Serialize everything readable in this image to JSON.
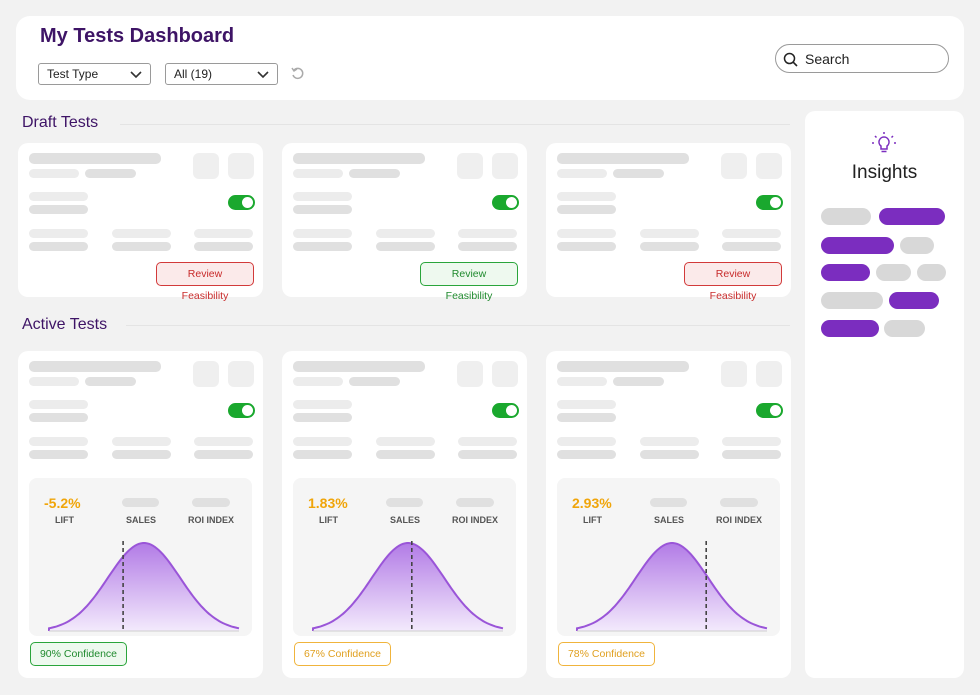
{
  "header": {
    "title": "My Tests Dashboard",
    "filter_type": "Test Type",
    "filter_count": "All (19)",
    "search_label": "Search"
  },
  "sections": {
    "draft_title": "Draft Tests",
    "active_title": "Active Tests"
  },
  "draft_cards": [
    {
      "status": "Review Feasibility",
      "status_color": "#d23a3a"
    },
    {
      "status": "Review Feasibility",
      "status_color": "#2aa53b"
    },
    {
      "status": "Review Feasibility",
      "status_color": "#d23a3a"
    }
  ],
  "active_cards": [
    {
      "lift": "-5.2%",
      "confidence": "90% Confidence",
      "confidence_color": "#2aa53b",
      "marker_fraction": 0.39
    },
    {
      "lift": "1.83%",
      "confidence": "67% Confidence",
      "confidence_color": "#f0b43c",
      "marker_fraction": 0.52
    },
    {
      "lift": "2.93%",
      "confidence": "78% Confidence",
      "confidence_color": "#f0b43c",
      "marker_fraction": 0.68
    }
  ],
  "metric_labels": {
    "lift": "LIFT",
    "sales": "SALES",
    "roi": "ROI INDEX"
  },
  "insights": {
    "title": "Insights",
    "icon": "lightbulb-icon"
  },
  "colors": {
    "accent": "#7b2dbf",
    "title": "#3e1466",
    "lift": "#f0a50a"
  }
}
